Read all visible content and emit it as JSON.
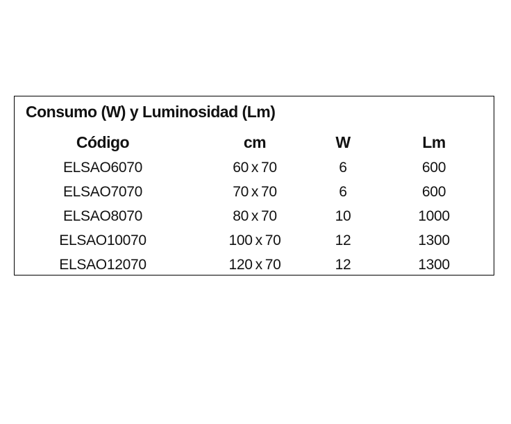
{
  "page": {
    "background_color": "#ffffff",
    "text_color": "#111111",
    "border_color": "#000000"
  },
  "panel": {
    "title": "Consumo (W) y Luminosidad (Lm)"
  },
  "table": {
    "headers": {
      "codigo": "Código",
      "cm": "cm",
      "w": "W",
      "lm": "Lm"
    },
    "rows": [
      {
        "codigo": "ELSAO6070",
        "cm": "60 x 70",
        "w": "6",
        "lm": "600"
      },
      {
        "codigo": "ELSAO7070",
        "cm": "70 x 70",
        "w": "6",
        "lm": "600"
      },
      {
        "codigo": "ELSAO8070",
        "cm": "80 x 70",
        "w": "10",
        "lm": "1000"
      },
      {
        "codigo": "ELSAO10070",
        "cm": "100 x 70",
        "w": "12",
        "lm": "1300"
      },
      {
        "codigo": "ELSAO12070",
        "cm": "120 x 70",
        "w": "12",
        "lm": "1300"
      }
    ]
  }
}
